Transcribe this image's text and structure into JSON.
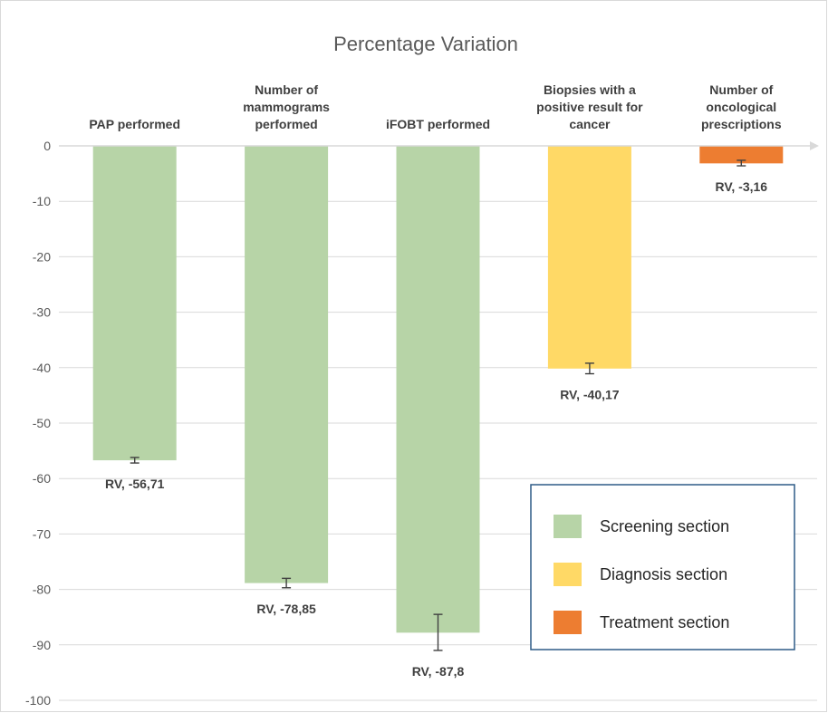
{
  "chart_data": {
    "type": "bar",
    "title": "Percentage Variation",
    "categories": [
      [
        "PAP performed"
      ],
      [
        "Number of",
        "mammograms",
        "performed"
      ],
      [
        "iFOBT performed"
      ],
      [
        "Biopsies with a",
        "positive result for",
        "cancer"
      ],
      [
        "Number of",
        "oncological",
        "prescriptions"
      ]
    ],
    "values": [
      -56.71,
      -78.85,
      -87.8,
      -40.17,
      -3.16
    ],
    "error_bars": [
      [
        -57.2,
        -56.2
      ],
      [
        -79.7,
        -78.0
      ],
      [
        -91.0,
        -84.5
      ],
      [
        -41.1,
        -39.2
      ],
      [
        -3.6,
        -2.6
      ]
    ],
    "data_labels": [
      "RV, -56,71",
      "RV, -78,85",
      "RV, -87,8",
      "RV, -40,17",
      "RV, -3,16"
    ],
    "sections": [
      "Screening section",
      "Screening section",
      "Screening section",
      "Diagnosis section",
      "Treatment section"
    ],
    "ylim": [
      -100,
      0
    ],
    "yticks": [
      0,
      -10,
      -20,
      -30,
      -40,
      -50,
      -60,
      -70,
      -80,
      -90,
      -100
    ],
    "xlabel": "",
    "ylabel": "",
    "grid": true,
    "legend": {
      "placement": "bottom-right",
      "entries": [
        {
          "label": "Screening section",
          "color": "#b7d4a7"
        },
        {
          "label": "Diagnosis section",
          "color": "#ffd966"
        },
        {
          "label": "Treatment section",
          "color": "#ed7d31"
        }
      ]
    }
  }
}
